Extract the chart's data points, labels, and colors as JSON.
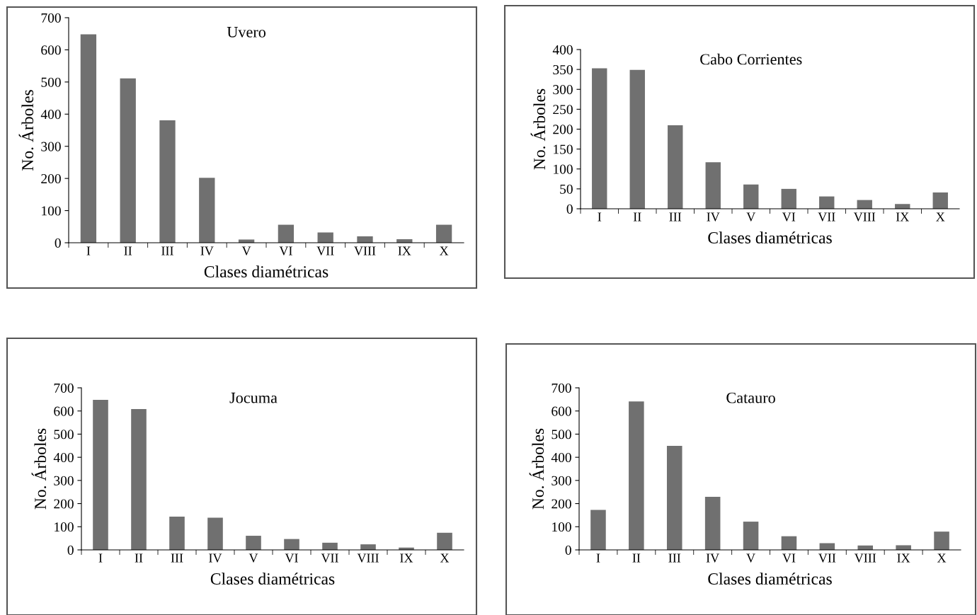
{
  "chart_data": [
    {
      "type": "bar",
      "title": "Uvero",
      "xlabel": "Clases diamétricas",
      "ylabel": "No. Árboles",
      "categories": [
        "I",
        "II",
        "III",
        "IV",
        "V",
        "VI",
        "VII",
        "VIII",
        "IX",
        "X"
      ],
      "values": [
        648,
        511,
        381,
        202,
        10,
        56,
        32,
        20,
        11,
        56
      ],
      "color": "#707070",
      "ylim": [
        0,
        700
      ],
      "yticks": [
        0,
        100,
        200,
        300,
        400,
        500,
        600,
        700
      ],
      "grid": false,
      "legend": false
    },
    {
      "type": "bar",
      "title": "Cabo Corrientes",
      "xlabel": "Clases diamétricas",
      "ylabel": "No. Árboles",
      "categories": [
        "I",
        "II",
        "III",
        "IV",
        "V",
        "VI",
        "VII",
        "VIII",
        "IX",
        "X"
      ],
      "values": [
        353,
        349,
        210,
        117,
        61,
        50,
        31,
        22,
        12,
        41
      ],
      "color": "#707070",
      "ylim": [
        0,
        400
      ],
      "yticks": [
        0,
        50,
        100,
        150,
        200,
        250,
        300,
        350,
        400
      ],
      "grid": false,
      "legend": false
    },
    {
      "type": "bar",
      "title": "Jocuma",
      "xlabel": "Clases diamétricas",
      "ylabel": "No. Árboles",
      "categories": [
        "I",
        "II",
        "III",
        "IV",
        "V",
        "VI",
        "VII",
        "VIII",
        "IX",
        "X"
      ],
      "values": [
        648,
        608,
        144,
        139,
        61,
        47,
        31,
        24,
        10,
        74
      ],
      "color": "#707070",
      "ylim": [
        0,
        700
      ],
      "yticks": [
        0,
        100,
        200,
        300,
        400,
        500,
        600,
        700
      ],
      "grid": false,
      "legend": false
    },
    {
      "type": "bar",
      "title": "Catauro",
      "xlabel": "Clases diamétricas",
      "ylabel": "No. Árboles",
      "categories": [
        "I",
        "II",
        "III",
        "IV",
        "V",
        "VI",
        "VII",
        "VIII",
        "IX",
        "X"
      ],
      "values": [
        173,
        641,
        449,
        229,
        122,
        59,
        29,
        19,
        20,
        79
      ],
      "color": "#707070",
      "ylim": [
        0,
        700
      ],
      "yticks": [
        0,
        100,
        200,
        300,
        400,
        500,
        600,
        700
      ],
      "grid": false,
      "legend": false
    }
  ]
}
